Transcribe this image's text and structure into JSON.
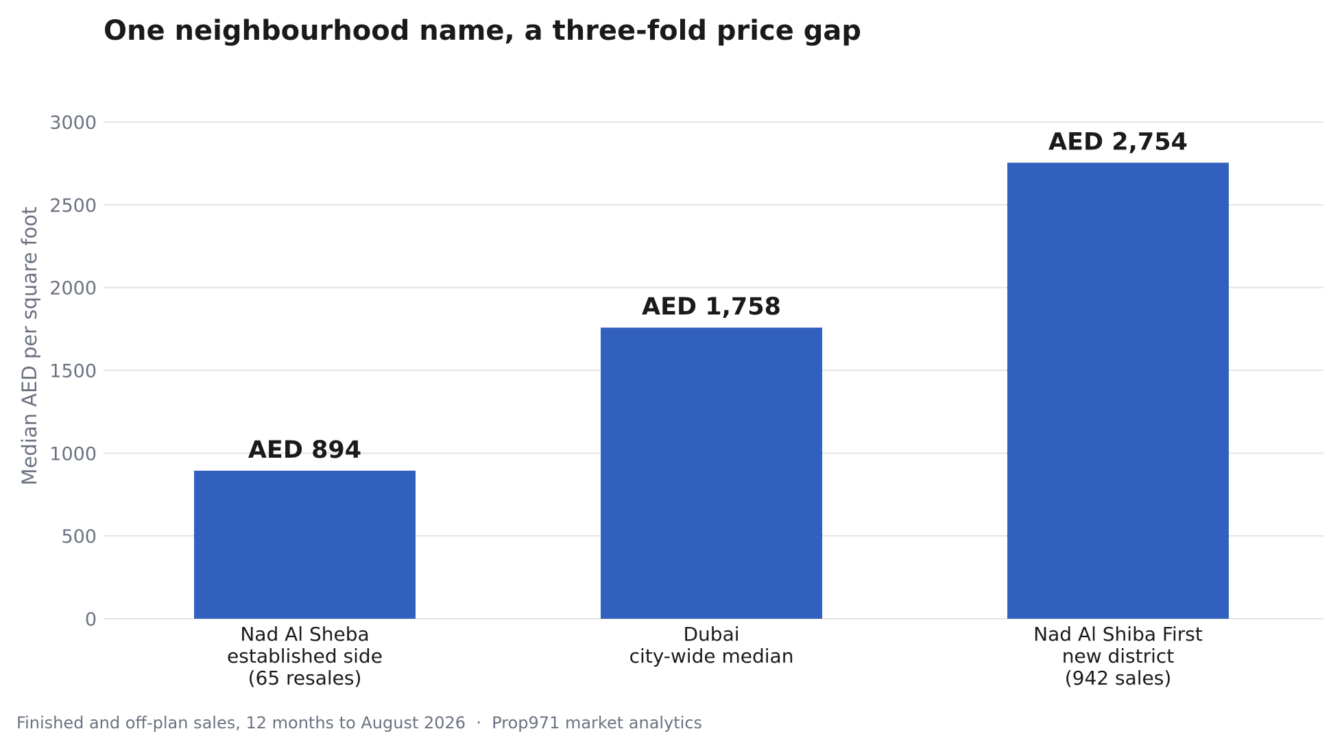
{
  "chart_data": {
    "type": "bar",
    "title": "One neighbourhood name, a three-fold price gap",
    "ylabel": "Median AED per square foot",
    "xlabel": "",
    "ylim": [
      0,
      3000
    ],
    "yticks": [
      0,
      500,
      1000,
      1500,
      2000,
      2500,
      3000
    ],
    "grid": true,
    "bar_color": "#3160be",
    "categories": [
      [
        "Nad Al Sheba",
        "established side",
        "(65 resales)"
      ],
      [
        "Dubai",
        "city-wide median"
      ],
      [
        "Nad Al Shiba First",
        "new district",
        "(942 sales)"
      ]
    ],
    "values": [
      894,
      1758,
      2754
    ],
    "data_labels": [
      "AED 894",
      "AED 1,758",
      "AED 2,754"
    ]
  },
  "footer": {
    "note": "Finished and off-plan sales, 12 months to August 2026  ·  Prop971 market analytics"
  }
}
